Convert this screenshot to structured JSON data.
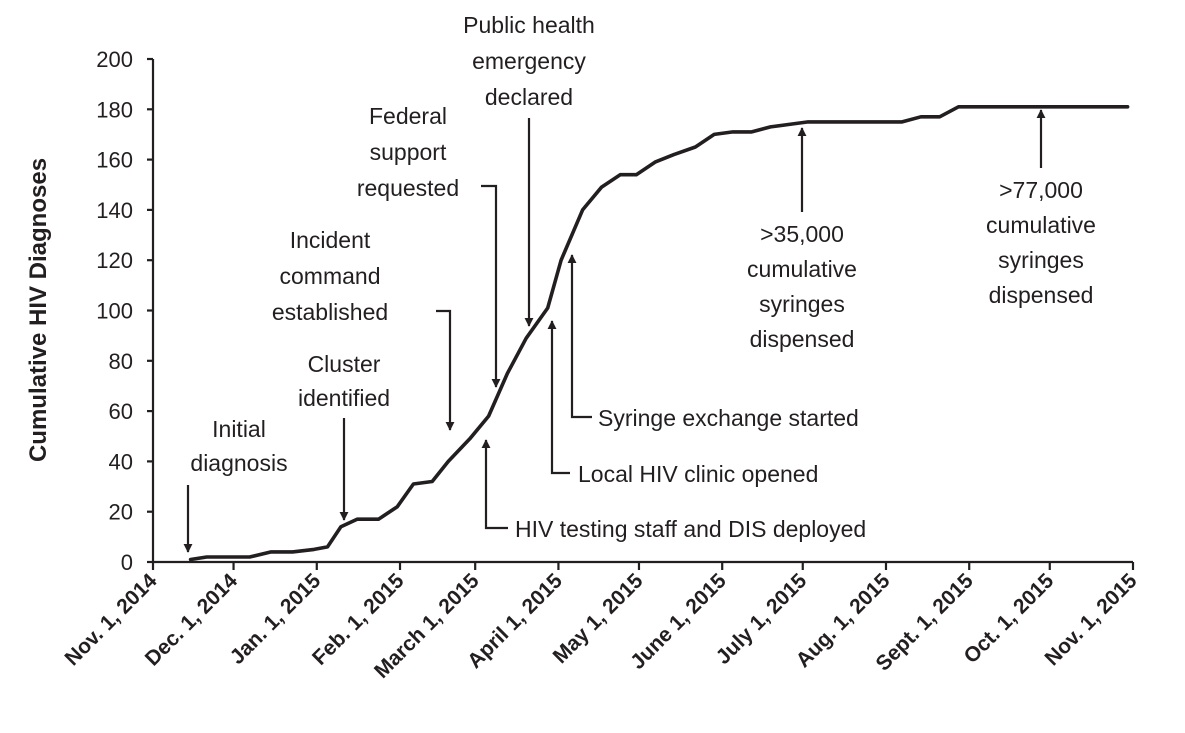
{
  "chart_data": {
    "type": "line",
    "title": "",
    "xlabel": "",
    "ylabel": "Cumulative HIV Diagnoses",
    "ylim": [
      0,
      200
    ],
    "yticks": [
      0,
      20,
      40,
      60,
      80,
      100,
      120,
      140,
      160,
      180,
      200
    ],
    "xlim": [
      "2014-11-01",
      "2015-11-01"
    ],
    "xticks": [
      {
        "date": "2014-11-01",
        "label": "Nov. 1, 2014"
      },
      {
        "date": "2014-12-01",
        "label": "Dec. 1, 2014"
      },
      {
        "date": "2015-01-01",
        "label": "Jan. 1, 2015"
      },
      {
        "date": "2015-02-01",
        "label": "Feb. 1, 2015"
      },
      {
        "date": "2015-03-01",
        "label": "March 1, 2015"
      },
      {
        "date": "2015-04-01",
        "label": "April 1, 2015"
      },
      {
        "date": "2015-05-01",
        "label": "May 1, 2015"
      },
      {
        "date": "2015-06-01",
        "label": "June 1, 2015"
      },
      {
        "date": "2015-07-01",
        "label": "July 1, 2015"
      },
      {
        "date": "2015-08-01",
        "label": "Aug. 1, 2015"
      },
      {
        "date": "2015-09-01",
        "label": "Sept. 1, 2015"
      },
      {
        "date": "2015-10-01",
        "label": "Oct. 1, 2015"
      },
      {
        "date": "2015-11-01",
        "label": "Nov. 1, 2015"
      }
    ],
    "grid": false,
    "series": [
      {
        "points": [
          [
            "2014-11-15",
            1
          ],
          [
            "2014-11-21",
            2
          ],
          [
            "2014-12-07",
            2
          ],
          [
            "2014-12-15",
            4
          ],
          [
            "2014-12-23",
            4
          ],
          [
            "2014-12-31",
            5
          ],
          [
            "2015-01-05",
            6
          ],
          [
            "2015-01-10",
            14
          ],
          [
            "2015-01-16",
            17
          ],
          [
            "2015-01-24",
            17
          ],
          [
            "2015-01-31",
            22
          ],
          [
            "2015-02-06",
            31
          ],
          [
            "2015-02-13",
            32
          ],
          [
            "2015-02-19",
            40
          ],
          [
            "2015-02-27",
            49
          ],
          [
            "2015-03-06",
            58
          ],
          [
            "2015-03-13",
            75
          ],
          [
            "2015-03-20",
            89
          ],
          [
            "2015-03-28",
            101
          ],
          [
            "2015-04-02",
            120
          ],
          [
            "2015-04-10",
            140
          ],
          [
            "2015-04-17",
            149
          ],
          [
            "2015-04-24",
            154
          ],
          [
            "2015-04-30",
            154
          ],
          [
            "2015-05-07",
            159
          ],
          [
            "2015-05-14",
            162
          ],
          [
            "2015-05-22",
            165
          ],
          [
            "2015-05-29",
            170
          ],
          [
            "2015-06-05",
            171
          ],
          [
            "2015-06-12",
            171
          ],
          [
            "2015-06-19",
            173
          ],
          [
            "2015-06-26",
            174
          ],
          [
            "2015-07-03",
            175
          ],
          [
            "2015-07-10",
            175
          ],
          [
            "2015-07-17",
            175
          ],
          [
            "2015-07-24",
            175
          ],
          [
            "2015-07-31",
            175
          ],
          [
            "2015-08-07",
            175
          ],
          [
            "2015-08-14",
            177
          ],
          [
            "2015-08-21",
            177
          ],
          [
            "2015-08-28",
            181
          ],
          [
            "2015-09-04",
            181
          ],
          [
            "2015-10-30",
            181
          ]
        ]
      }
    ],
    "annotations": [
      {
        "id": "initial-diagnosis",
        "lines": [
          "Initial",
          "diagnosis"
        ],
        "target": {
          "date": "2014-11-15",
          "y": 1
        },
        "direction": "down"
      },
      {
        "id": "cluster-identified",
        "lines": [
          "Cluster",
          "identified"
        ],
        "target": {
          "date": "2015-01-10",
          "y": 14
        },
        "direction": "down"
      },
      {
        "id": "incident-command",
        "lines": [
          "Incident",
          "command",
          "established"
        ],
        "target": {
          "date": "2015-02-19",
          "y": 40
        },
        "direction": "down"
      },
      {
        "id": "federal-support",
        "lines": [
          "Federal",
          "support",
          "requested"
        ],
        "target": {
          "date": "2015-03-12",
          "y": 70
        },
        "direction": "down"
      },
      {
        "id": "public-health-emergency",
        "lines": [
          "Public health",
          "emergency",
          "declared"
        ],
        "target": {
          "date": "2015-03-24",
          "y": 94
        },
        "direction": "down"
      },
      {
        "id": "hiv-testing-staff",
        "lines": [
          "HIV testing staff and DIS deployed"
        ],
        "target": {
          "date": "2015-03-02",
          "y": 47
        },
        "direction": "up"
      },
      {
        "id": "local-hiv-clinic",
        "lines": [
          "Local HIV clinic opened"
        ],
        "target": {
          "date": "2015-03-28",
          "y": 93
        },
        "direction": "up"
      },
      {
        "id": "syringe-exchange",
        "lines": [
          "Syringe exchange started"
        ],
        "target": {
          "date": "2015-04-04",
          "y": 122
        },
        "direction": "up"
      },
      {
        "id": "syringes-35000",
        "lines": [
          ">35,000",
          "cumulative",
          "syringes",
          "dispensed"
        ],
        "target": {
          "date": "2015-07-01",
          "y": 174
        },
        "direction": "up"
      },
      {
        "id": "syringes-77000",
        "lines": [
          ">77,000",
          "cumulative",
          "syringes",
          "dispensed"
        ],
        "target": {
          "date": "2015-10-01",
          "y": 181
        },
        "direction": "up"
      }
    ]
  }
}
